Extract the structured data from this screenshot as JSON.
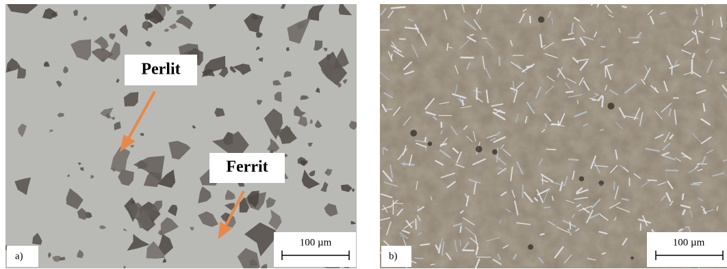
{
  "panels": [
    {
      "label": "a)",
      "scale_bar": "100 µm",
      "annotations": [
        "Perlit",
        "Ferrit"
      ]
    },
    {
      "label": "b)",
      "scale_bar": "100 µm"
    }
  ]
}
